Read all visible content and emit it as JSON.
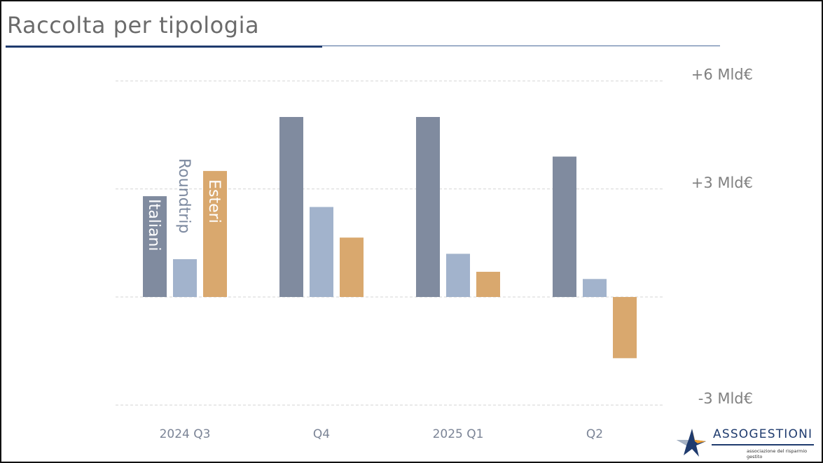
{
  "slide": {
    "title": "Raccolta per tipologia"
  },
  "logo": {
    "name": "ASSOGESTIONI",
    "subtitle": "associazione del risparmio gestito"
  },
  "colors": {
    "italiani": "#808b9f",
    "roundtrip": "#a2b3cc",
    "esteri": "#d9a86e",
    "title_rule": "#1f3b6e"
  },
  "chart_data": {
    "type": "bar",
    "categories": [
      "2024 Q3",
      "Q4",
      "2025 Q1",
      "Q2"
    ],
    "series": [
      {
        "name": "Italiani",
        "color": "#808b9f",
        "values": [
          2.8,
          5.0,
          5.0,
          3.9
        ]
      },
      {
        "name": "Roundtrip",
        "color": "#a2b3cc",
        "values": [
          1.05,
          2.5,
          1.2,
          0.5
        ]
      },
      {
        "name": "Esteri",
        "color": "#d9a86e",
        "values": [
          3.5,
          1.65,
          0.7,
          -1.7
        ]
      }
    ],
    "ytick_labels": [
      "+6 Mld€",
      "+3 Mld€",
      "-3 Mld€"
    ],
    "ylim": [
      -3,
      6
    ],
    "grid": true,
    "legend": "vertical labels inside first group bars"
  }
}
